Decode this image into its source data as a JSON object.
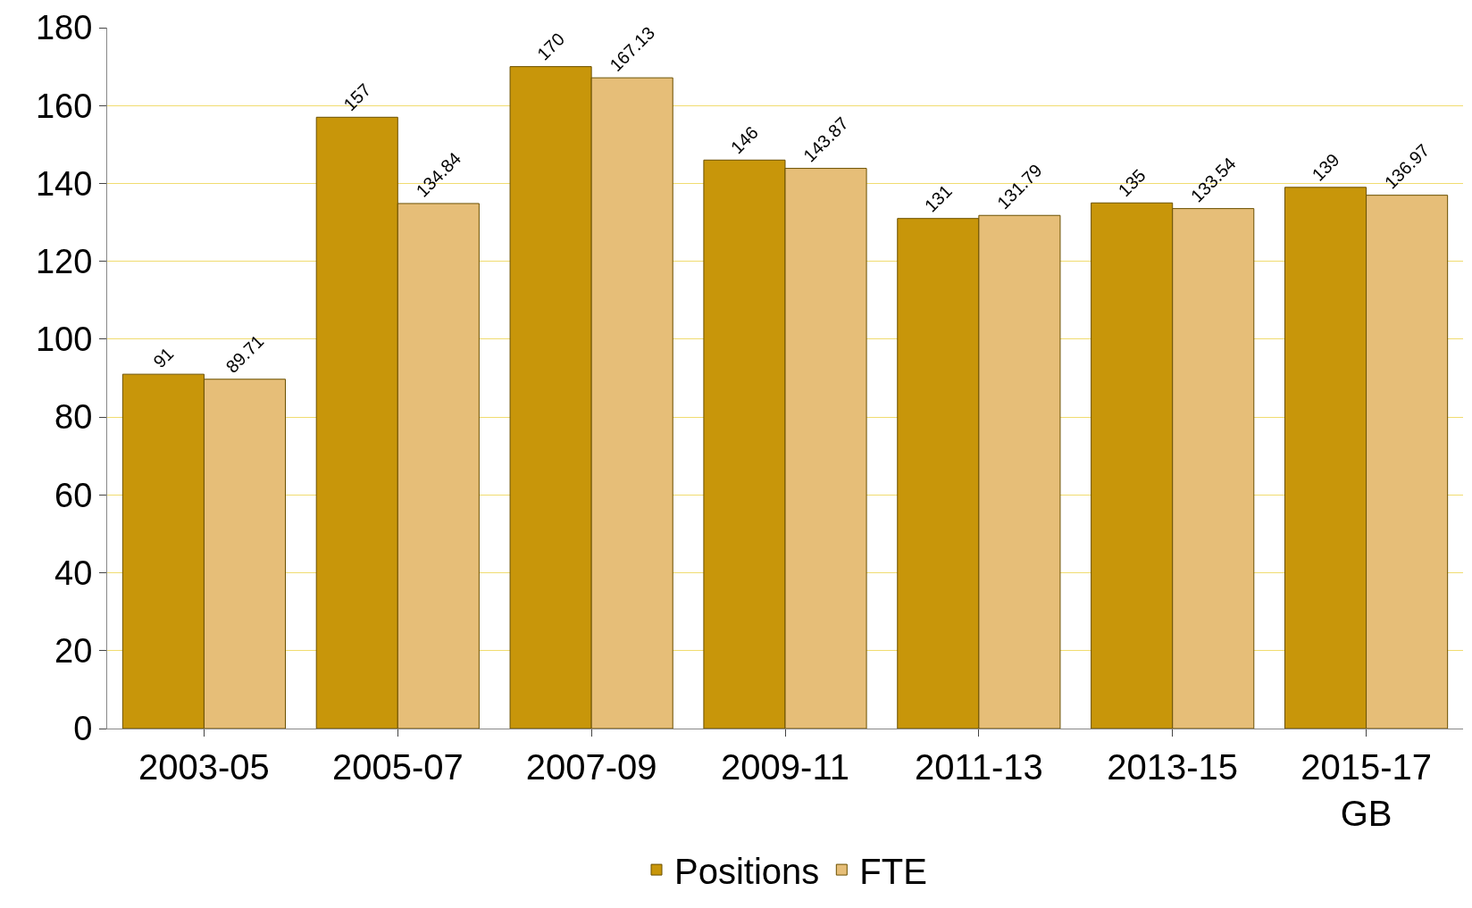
{
  "chart_data": {
    "type": "bar",
    "categories": [
      "2003-05",
      "2005-07",
      "2007-09",
      "2009-11",
      "2011-13",
      "2013-15",
      "2015-17\nGB"
    ],
    "series": [
      {
        "name": "Positions",
        "color": "#c8960a",
        "values": [
          91,
          157,
          170,
          146,
          131,
          135,
          139
        ]
      },
      {
        "name": "FTE",
        "color": "#e6be78",
        "values": [
          89.71,
          134.84,
          167.13,
          143.87,
          131.79,
          133.54,
          136.97
        ]
      }
    ],
    "ylim": [
      0,
      180
    ],
    "yticks": [
      0,
      20,
      40,
      60,
      80,
      100,
      120,
      140,
      160,
      180
    ],
    "grid": "y",
    "legend": "bottom",
    "data_labels": true
  }
}
